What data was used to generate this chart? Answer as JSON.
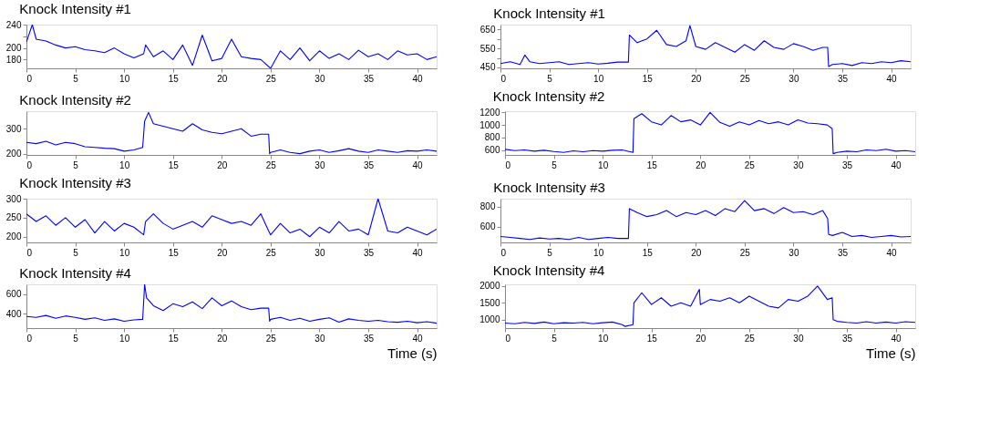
{
  "chart_data": [
    {
      "type": "line",
      "title": "Knock Intensity #1",
      "xlim": [
        0,
        42
      ],
      "xticks": [
        0,
        5,
        10,
        15,
        20,
        25,
        30,
        35,
        40
      ],
      "ylim": [
        165,
        240
      ],
      "yticks": [
        180,
        200,
        {
          "value": 220,
          "label": null
        },
        240
      ],
      "grid": false,
      "marker": "none",
      "line_style": "solid",
      "x": [
        0,
        0.6,
        1,
        2,
        3,
        4,
        5,
        6,
        7,
        8,
        9,
        10,
        11,
        12,
        12.2,
        13,
        14,
        15,
        16,
        17,
        18,
        19,
        20,
        21,
        22,
        23,
        24,
        25,
        26,
        27,
        28,
        29,
        30,
        31,
        32,
        33,
        34,
        35,
        36,
        37,
        38,
        39,
        40,
        41,
        42
      ],
      "series": [
        {
          "color": "#0000ff",
          "values": [
            210,
            240,
            215,
            212,
            205,
            200,
            202,
            197,
            195,
            192,
            200,
            190,
            183,
            190,
            205,
            185,
            195,
            180,
            205,
            170,
            222,
            178,
            182,
            215,
            185,
            182,
            180,
            165,
            195,
            180,
            200,
            178,
            195,
            182,
            190,
            180,
            196,
            185,
            190,
            180,
            195,
            188,
            190,
            180,
            185
          ]
        }
      ]
    },
    {
      "type": "line",
      "title": "Knock Intensity #1",
      "xlim": [
        0,
        42
      ],
      "xticks": [
        0,
        5,
        10,
        15,
        20,
        25,
        30,
        35,
        40
      ],
      "ylim": [
        445,
        675
      ],
      "yticks": [
        450,
        {
          "value": 500,
          "label": null
        },
        550,
        {
          "value": 600,
          "label": null
        },
        650
      ],
      "grid": false,
      "marker": "none",
      "line_style": "solid",
      "x": [
        0,
        1,
        2,
        2.5,
        3,
        4,
        5,
        6,
        7,
        8,
        9,
        10,
        11,
        12,
        13.1,
        13.2,
        14,
        15,
        16,
        17,
        18,
        19,
        19.4,
        20,
        21,
        22,
        23,
        24,
        25,
        26,
        27,
        28,
        29,
        30,
        31,
        32,
        33,
        33.5,
        33.6,
        34,
        35,
        36,
        37,
        38,
        39,
        40,
        41,
        42
      ],
      "series": [
        {
          "color": "#0000ff",
          "values": [
            470,
            480,
            465,
            515,
            480,
            470,
            475,
            480,
            465,
            470,
            475,
            468,
            472,
            478,
            478,
            620,
            580,
            600,
            645,
            570,
            560,
            590,
            670,
            560,
            545,
            580,
            555,
            530,
            570,
            540,
            590,
            555,
            545,
            575,
            560,
            540,
            555,
            555,
            455,
            465,
            470,
            460,
            475,
            470,
            480,
            475,
            485,
            480
          ]
        }
      ]
    },
    {
      "type": "line",
      "title": "Knock Intensity #2",
      "xlim": [
        0,
        42
      ],
      "xticks": [
        0,
        5,
        10,
        15,
        20,
        25,
        30,
        35,
        40
      ],
      "ylim": [
        195,
        370
      ],
      "yticks": [
        200,
        300
      ],
      "grid": false,
      "marker": "none",
      "line_style": "solid",
      "x": [
        0,
        1,
        2,
        3,
        4,
        5,
        6,
        7,
        8,
        9,
        10,
        11,
        11.9,
        12.1,
        12.5,
        13,
        14,
        15,
        16,
        17,
        18,
        19,
        20,
        21,
        22,
        23,
        24,
        24.8,
        24.9,
        25,
        26,
        27,
        28,
        29,
        30,
        31,
        32,
        33,
        34,
        35,
        36,
        37,
        38,
        39,
        40,
        41,
        42
      ],
      "series": [
        {
          "color": "#0000ff",
          "values": [
            245,
            240,
            250,
            235,
            245,
            240,
            228,
            225,
            222,
            220,
            210,
            215,
            225,
            330,
            365,
            320,
            310,
            300,
            290,
            320,
            295,
            285,
            280,
            290,
            300,
            270,
            278,
            278,
            200,
            205,
            215,
            205,
            200,
            210,
            215,
            205,
            212,
            220,
            210,
            205,
            215,
            210,
            205,
            212,
            210,
            215,
            210
          ]
        }
      ]
    },
    {
      "type": "line",
      "title": "Knock Intensity #2",
      "xlim": [
        0,
        42
      ],
      "xticks": [
        0,
        5,
        10,
        15,
        20,
        25,
        30,
        35,
        40
      ],
      "ylim": [
        520,
        1220
      ],
      "yticks": [
        600,
        800,
        1000,
        1200
      ],
      "grid": false,
      "marker": "none",
      "line_style": "solid",
      "x": [
        0,
        1,
        2,
        3,
        4,
        5,
        6,
        7,
        8,
        9,
        10,
        11,
        12,
        13.1,
        13.2,
        14,
        15,
        16,
        17,
        18,
        19,
        20,
        21,
        22,
        23,
        24,
        25,
        26,
        27,
        28,
        29,
        30,
        31,
        32,
        33,
        33.5,
        33.6,
        34,
        35,
        36,
        37,
        38,
        39,
        40,
        41,
        42
      ],
      "series": [
        {
          "color": "#0000ff",
          "values": [
            610,
            590,
            600,
            580,
            595,
            575,
            560,
            585,
            570,
            590,
            580,
            595,
            600,
            560,
            1100,
            1180,
            1050,
            1000,
            1150,
            1050,
            1080,
            1000,
            1200,
            1040,
            980,
            1050,
            1000,
            1070,
            1020,
            1050,
            1000,
            1080,
            1030,
            1020,
            1000,
            940,
            540,
            560,
            580,
            570,
            600,
            590,
            610,
            580,
            590,
            570
          ]
        }
      ]
    },
    {
      "type": "line",
      "title": "Knock Intensity #3",
      "xlim": [
        0,
        42
      ],
      "xticks": [
        0,
        5,
        10,
        15,
        20,
        25,
        30,
        35,
        40
      ],
      "ylim": [
        185,
        300
      ],
      "yticks": [
        200,
        250,
        300
      ],
      "grid": false,
      "marker": "none",
      "line_style": "solid",
      "x": [
        0,
        1,
        2,
        3,
        4,
        5,
        6,
        7,
        8,
        9,
        10,
        11,
        12,
        12.2,
        13,
        14,
        15,
        16,
        17,
        18,
        19,
        20,
        21,
        22,
        23,
        24,
        24.8,
        25,
        26,
        27,
        28,
        29,
        30,
        31,
        32,
        33,
        34,
        35,
        36,
        37,
        38,
        39,
        40,
        41,
        42
      ],
      "series": [
        {
          "color": "#0000ff",
          "values": [
            260,
            240,
            255,
            230,
            250,
            225,
            245,
            210,
            240,
            215,
            235,
            225,
            205,
            240,
            260,
            235,
            220,
            230,
            240,
            225,
            255,
            245,
            235,
            240,
            230,
            260,
            215,
            205,
            235,
            210,
            220,
            200,
            225,
            210,
            240,
            215,
            220,
            205,
            300,
            215,
            210,
            225,
            215,
            205,
            220
          ]
        }
      ]
    },
    {
      "type": "line",
      "title": "Knock Intensity #3",
      "xlim": [
        0,
        42
      ],
      "xticks": [
        0,
        5,
        10,
        15,
        20,
        25,
        30,
        35,
        40
      ],
      "ylim": [
        440,
        880
      ],
      "yticks": [
        600,
        800
      ],
      "grid": false,
      "marker": "none",
      "line_style": "solid",
      "x": [
        0,
        1,
        2,
        3,
        4,
        5,
        6,
        7,
        8,
        9,
        10,
        11,
        12,
        13.1,
        13.2,
        14,
        15,
        16,
        17,
        18,
        19,
        20,
        21,
        22,
        23,
        24,
        25,
        26,
        27,
        28,
        29,
        30,
        31,
        32,
        33,
        33.5,
        33.6,
        34,
        35,
        36,
        37,
        38,
        39,
        40,
        41,
        42
      ],
      "series": [
        {
          "color": "#0000ff",
          "values": [
            500,
            490,
            480,
            470,
            485,
            475,
            480,
            470,
            490,
            470,
            480,
            490,
            480,
            480,
            780,
            740,
            700,
            720,
            760,
            700,
            740,
            720,
            760,
            710,
            780,
            750,
            860,
            760,
            780,
            730,
            790,
            740,
            750,
            720,
            760,
            680,
            520,
            510,
            540,
            500,
            510,
            490,
            500,
            510,
            495,
            500
          ]
        }
      ]
    },
    {
      "type": "line",
      "title": "Knock Intensity #4",
      "xlabel": "Time (s)",
      "xlim": [
        0,
        42
      ],
      "xticks": [
        0,
        5,
        10,
        15,
        20,
        25,
        30,
        35,
        40
      ],
      "ylim": [
        250,
        700
      ],
      "yticks": [
        400,
        600
      ],
      "grid": false,
      "marker": "none",
      "line_style": "solid",
      "x": [
        0,
        1,
        2,
        3,
        4,
        5,
        6,
        7,
        8,
        9,
        10,
        11,
        11.9,
        12.1,
        12.3,
        13,
        14,
        15,
        16,
        17,
        18,
        19,
        20,
        21,
        22,
        23,
        24,
        24.8,
        24.9,
        25,
        26,
        27,
        28,
        29,
        30,
        31,
        32,
        33,
        34,
        35,
        36,
        37,
        38,
        39,
        40,
        41,
        42
      ],
      "series": [
        {
          "color": "#0000ff",
          "values": [
            370,
            360,
            380,
            350,
            375,
            360,
            340,
            355,
            330,
            345,
            320,
            335,
            340,
            700,
            560,
            480,
            430,
            500,
            470,
            520,
            450,
            560,
            480,
            530,
            470,
            440,
            455,
            455,
            320,
            340,
            360,
            330,
            350,
            320,
            340,
            355,
            310,
            345,
            330,
            320,
            330,
            315,
            310,
            320,
            305,
            315,
            300
          ]
        }
      ]
    },
    {
      "type": "line",
      "title": "Knock Intensity #4",
      "xlabel": "Time (s)",
      "xlim": [
        0,
        42
      ],
      "xticks": [
        0,
        5,
        10,
        15,
        20,
        25,
        30,
        35,
        40
      ],
      "ylim": [
        750,
        2050
      ],
      "yticks": [
        1000,
        1500,
        2000
      ],
      "grid": false,
      "marker": "none",
      "line_style": "solid",
      "x": [
        0,
        1,
        2,
        3,
        4,
        5,
        6,
        7,
        8,
        9,
        10,
        11,
        12,
        12.3,
        13.1,
        13.2,
        14,
        15,
        16,
        17,
        18,
        19,
        19.9,
        20,
        21,
        22,
        23,
        24,
        25,
        26,
        27,
        28,
        29,
        30,
        31,
        32,
        33,
        33.5,
        33.6,
        34,
        35,
        36,
        37,
        38,
        39,
        40,
        41,
        42
      ],
      "series": [
        {
          "color": "#0000ff",
          "values": [
            900,
            880,
            920,
            890,
            930,
            880,
            910,
            900,
            920,
            880,
            910,
            930,
            850,
            800,
            850,
            1500,
            1800,
            1450,
            1650,
            1400,
            1500,
            1400,
            1900,
            1450,
            1600,
            1550,
            1650,
            1500,
            1700,
            1550,
            1400,
            1350,
            1600,
            1550,
            1700,
            2000,
            1600,
            1650,
            1000,
            950,
            920,
            900,
            940,
            900,
            930,
            900,
            940,
            920
          ]
        }
      ]
    }
  ]
}
